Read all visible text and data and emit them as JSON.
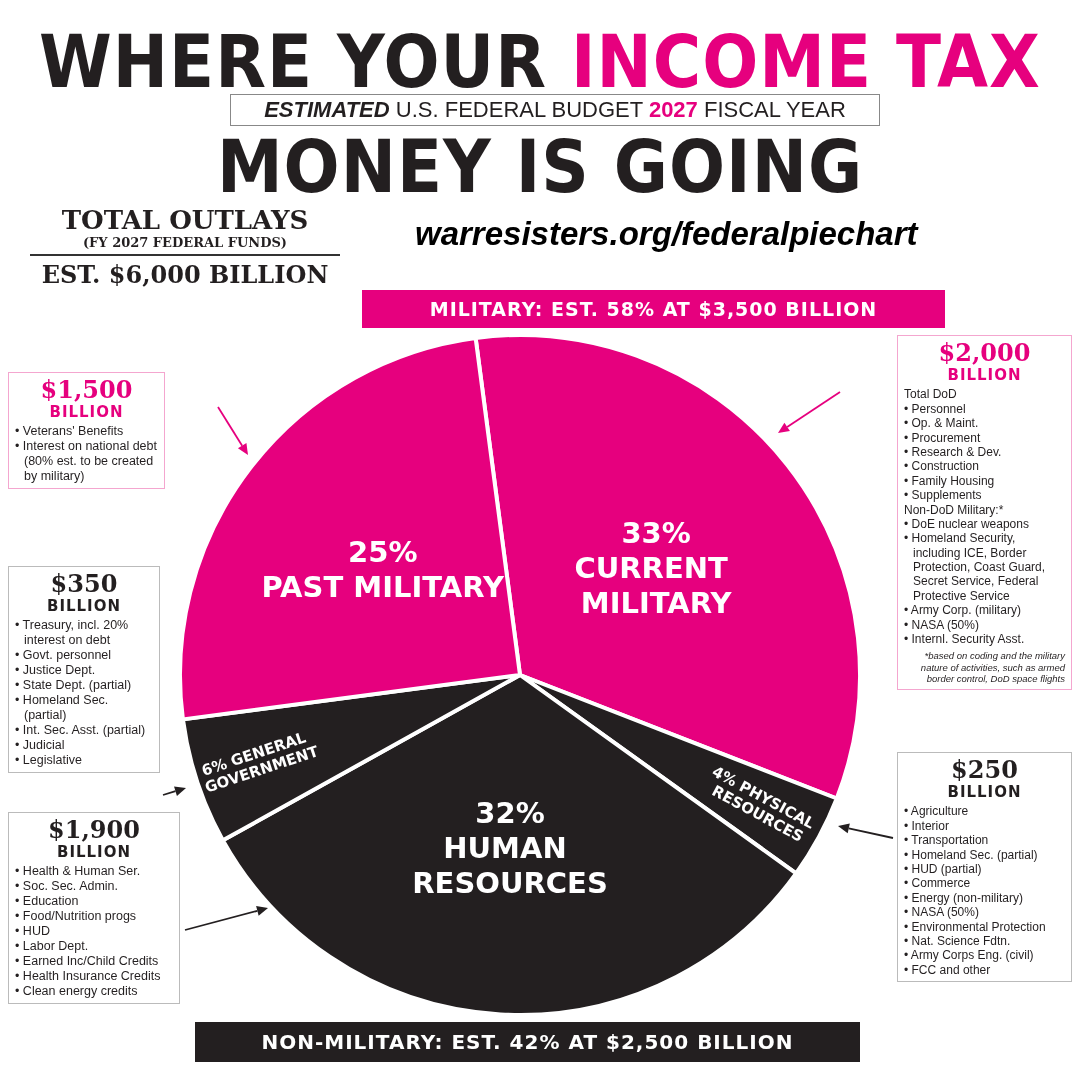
{
  "chart_data": {
    "type": "pie",
    "title": "WHERE YOUR INCOME TAX MONEY IS GOING",
    "subtitle": "ESTIMATED U.S. FEDERAL BUDGET 2027 FISCAL YEAR",
    "categories": [
      "CURRENT MILITARY",
      "PHYSICAL RESOURCES",
      "HUMAN RESOURCES",
      "GENERAL GOVERNMENT",
      "PAST MILITARY"
    ],
    "values": [
      33,
      4,
      32,
      6,
      25
    ],
    "colors": [
      "#e6007e",
      "#231f20",
      "#231f20",
      "#231f20",
      "#e6007e"
    ],
    "value_labels": [
      "33%",
      "4%",
      "32%",
      "6%",
      "25%"
    ],
    "legend": false,
    "annotations": [
      "TOTAL OUTLAYS",
      "(FY 2027 FEDERAL FUNDS)",
      "EST. $6,000 BILLION",
      "warresisters.org/federalpiechart",
      "MILITARY: EST. 58% AT $3,500 BILLION",
      "NON-MILITARY: EST. 42% AT $2,500 BILLION",
      "$1,500\nBILLION\n• Veterans' Benefits\n• Interest on national debt (80% est. to be created by military)",
      "$2,000\nBILLION\nTotal DoD\n• Personnel\n• Op. & Maint.\n• Procurement\n• Research & Dev.\n• Construction\n• Family Housing\n• Supplements\nNon-DoD Military:*\n• DoE nuclear weapons\n• Homeland Security, including ICE, Border Protection, Coast Guard, Secret Service, Federal Protective Service\n• Army Corp. (military)\n• NASA (50%)\n• Internl. Security Asst.\n*based on coding and the military nature of activities, such as armed border control, DoD space flights",
      "$350\nBILLION\n• Treasury, incl. 20% interest on debt\n• Govt. personnel\n• Justice Dept.\n• State Dept. (partial)\n• Homeland Sec. (partial)\n• Int. Sec. Asst. (partial)\n• Judicial\n• Legislative",
      "$1,900\nBILLION\n• Health & Human Ser.\n• Soc. Sec. Admin.\n• Education\n• Food/Nutrition progs\n• HUD\n• Labor Dept.\n• Earned Inc/Child Credits\n• Health Insurance Credits\n• Clean energy credits",
      "$250\nBILLION\n• Agriculture\n• Interior\n• Transportation\n• Homeland Sec. (partial)\n• HUD (partial)\n• Commerce\n• Energy (non-military)\n• NASA (50%)\n• Environmental Protection\n• Nat. Science Fdtn.\n• Army Corps Eng. (civil)\n• FCC and other"
    ]
  }
}
